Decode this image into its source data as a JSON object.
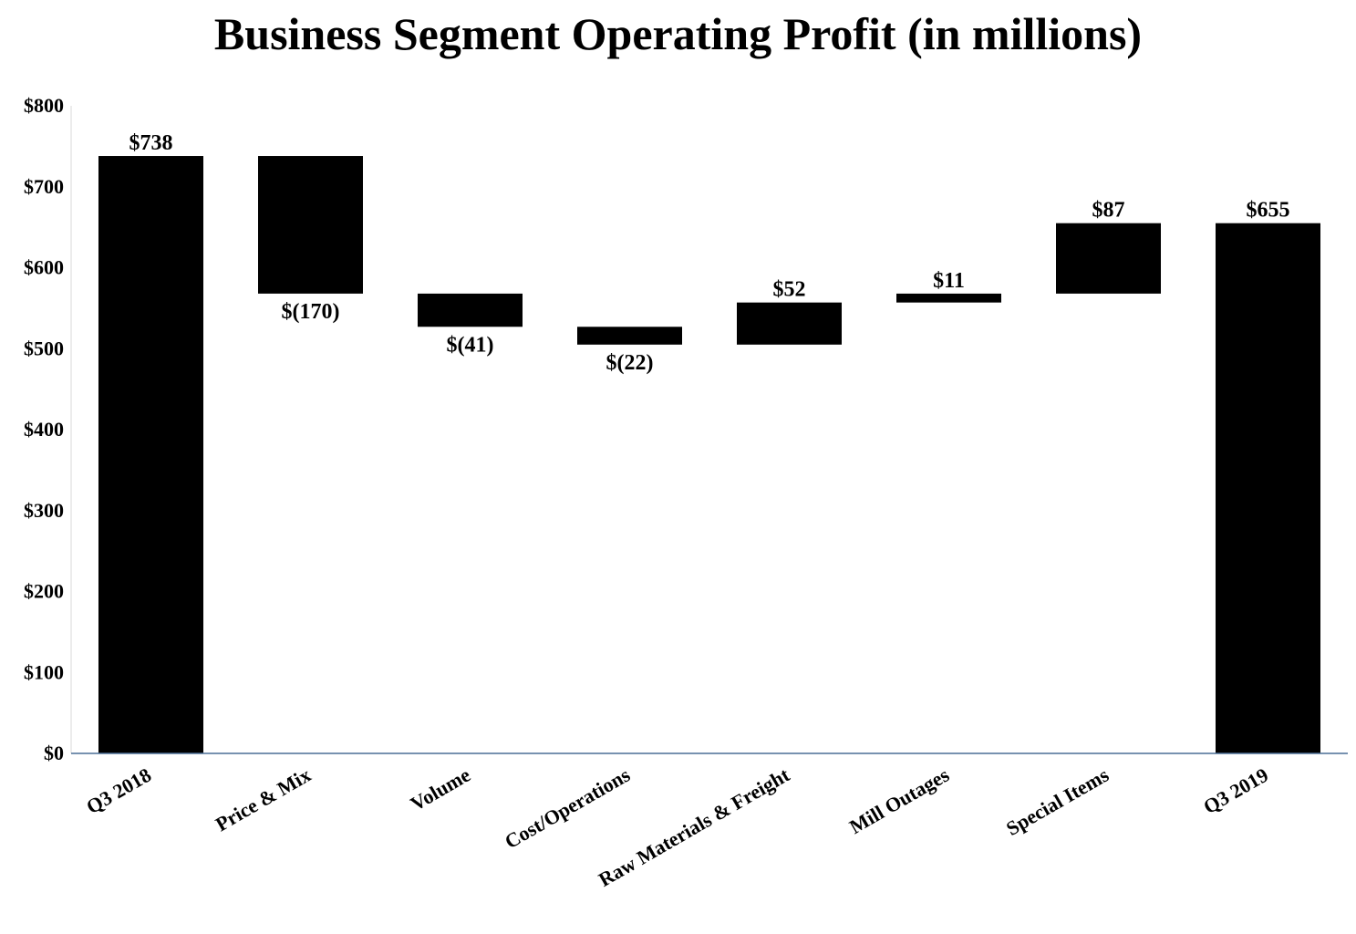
{
  "chart_data": {
    "type": "waterfall",
    "title": "Business Segment Operating Profit (in millions)",
    "xlabel": "",
    "ylabel": "",
    "ylim": [
      0,
      800
    ],
    "ytick_values": [
      0,
      100,
      200,
      300,
      400,
      500,
      600,
      700,
      800
    ],
    "ytick_labels": [
      "$0",
      "$100",
      "$200",
      "$300",
      "$400",
      "$500",
      "$600",
      "$700",
      "$800"
    ],
    "grid": false,
    "legend": "none",
    "categories": [
      "Q3 2018",
      "Price & Mix",
      "Volume",
      "Cost/Operations",
      "Raw Materials & Freight",
      "Mill Outages",
      "Special Items",
      "Q3 2019"
    ],
    "values": [
      738,
      -170,
      -41,
      -22,
      52,
      11,
      87,
      655
    ],
    "kinds": [
      "total",
      "delta",
      "delta",
      "delta",
      "delta",
      "delta",
      "delta",
      "total"
    ],
    "data_labels": [
      "$738",
      "$(170)",
      "$(41)",
      "$(22)",
      "$52",
      "$11",
      "$87",
      "$655"
    ],
    "colors": {
      "bar": "#000000",
      "axis": "#4a6f96",
      "text": "#000000"
    }
  }
}
